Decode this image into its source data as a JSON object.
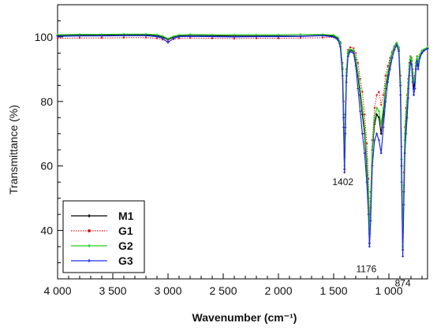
{
  "chart_data": {
    "type": "line",
    "xlabel": "Wavenumber (cm⁻¹)",
    "ylabel": "Transmittance (%)",
    "xlim": [
      4000,
      650
    ],
    "ylim": [
      25,
      110
    ],
    "x_reversed": true,
    "x_ticks": [
      4000,
      3500,
      3000,
      2500,
      2000,
      1500,
      1000
    ],
    "x_tick_labels": [
      "4 000",
      "3 500",
      "3 000",
      "2 500",
      "2 000",
      "1 500",
      "1 000"
    ],
    "y_ticks": [
      40,
      60,
      80,
      100
    ],
    "y_tick_labels": [
      "40",
      "60",
      "80",
      "100"
    ],
    "legend_position": "bottom-left",
    "annotations": [
      {
        "text": "1402",
        "x": 1402,
        "y": 56
      },
      {
        "text": "1176",
        "x": 1176,
        "y": 31
      },
      {
        "text": "874",
        "x": 874,
        "y": 28
      }
    ],
    "series": [
      {
        "name": "M1",
        "color": "#000000",
        "marker": "+",
        "x": [
          4000,
          3800,
          3600,
          3400,
          3200,
          3100,
          3050,
          3000,
          2950,
          2900,
          2800,
          2600,
          2400,
          2200,
          2000,
          1800,
          1600,
          1500,
          1460,
          1440,
          1420,
          1410,
          1402,
          1395,
          1385,
          1370,
          1350,
          1320,
          1300,
          1280,
          1260,
          1240,
          1220,
          1200,
          1185,
          1176,
          1165,
          1150,
          1130,
          1110,
          1090,
          1070,
          1050,
          1030,
          1010,
          990,
          970,
          950,
          930,
          910,
          895,
          885,
          874,
          865,
          855,
          845,
          835,
          825,
          815,
          805,
          795,
          785,
          775,
          765,
          755,
          745,
          735,
          720,
          700,
          680,
          650
        ],
        "y": [
          100.5,
          100.6,
          100.6,
          100.7,
          100.7,
          100.4,
          100.0,
          99.2,
          100.0,
          100.4,
          100.4,
          100.4,
          100.3,
          100.3,
          100.3,
          100.3,
          100.5,
          100.3,
          99.5,
          98.0,
          90.0,
          75.0,
          59.0,
          72.0,
          88.0,
          95.0,
          96.0,
          95.5,
          93.0,
          88.0,
          82.0,
          76.0,
          70.0,
          60.0,
          50.0,
          36.0,
          47.0,
          65.0,
          73.0,
          76.0,
          75.0,
          70.0,
          76.0,
          84.0,
          88.0,
          92.0,
          95.0,
          97.0,
          98.0,
          96.0,
          85.0,
          60.0,
          34.0,
          52.0,
          68.0,
          74.0,
          78.0,
          84.0,
          90.0,
          93.0,
          92.5,
          88.0,
          84.0,
          86.0,
          91.0,
          93.0,
          91.0,
          94.0,
          95.5,
          96.0,
          96.5
        ]
      },
      {
        "name": "G1",
        "color": "#e8171e",
        "marker": "dot",
        "x": [
          4000,
          3800,
          3600,
          3400,
          3200,
          3100,
          3050,
          3000,
          2950,
          2900,
          2800,
          2600,
          2400,
          2200,
          2000,
          1800,
          1600,
          1500,
          1460,
          1440,
          1420,
          1410,
          1402,
          1395,
          1385,
          1370,
          1350,
          1320,
          1300,
          1280,
          1260,
          1240,
          1220,
          1200,
          1185,
          1176,
          1165,
          1150,
          1130,
          1110,
          1090,
          1070,
          1050,
          1030,
          1010,
          990,
          970,
          950,
          930,
          910,
          895,
          885,
          874,
          865,
          855,
          845,
          835,
          825,
          815,
          805,
          795,
          785,
          775,
          765,
          755,
          745,
          735,
          720,
          700,
          680,
          650
        ],
        "y": [
          99.6,
          99.7,
          99.7,
          99.8,
          99.8,
          99.6,
          99.2,
          98.6,
          99.3,
          99.6,
          99.7,
          99.6,
          99.5,
          99.6,
          99.6,
          99.7,
          99.8,
          99.9,
          99.3,
          98.5,
          92.0,
          80.0,
          63.0,
          76.0,
          90.0,
          96.0,
          96.8,
          96.5,
          95.0,
          92.0,
          87.0,
          83.0,
          76.0,
          67.0,
          56.0,
          43.0,
          52.0,
          68.0,
          78.0,
          82.0,
          83.0,
          79.0,
          82.0,
          88.0,
          91.0,
          93.5,
          95.5,
          97.0,
          98.0,
          96.5,
          88.0,
          66.0,
          38.0,
          58.0,
          72.0,
          78.0,
          82.0,
          87.0,
          92.0,
          94.0,
          93.5,
          90.0,
          87.0,
          88.0,
          92.0,
          94.0,
          92.5,
          94.5,
          95.5,
          96.0,
          96.5
        ]
      },
      {
        "name": "G2",
        "color": "#22d11e",
        "marker": "+",
        "x": [
          4000,
          3800,
          3600,
          3400,
          3200,
          3100,
          3050,
          3000,
          2950,
          2900,
          2800,
          2600,
          2400,
          2200,
          2000,
          1800,
          1600,
          1500,
          1460,
          1440,
          1420,
          1410,
          1402,
          1395,
          1385,
          1370,
          1350,
          1320,
          1300,
          1280,
          1260,
          1240,
          1220,
          1200,
          1185,
          1176,
          1165,
          1150,
          1130,
          1110,
          1090,
          1070,
          1050,
          1030,
          1010,
          990,
          970,
          950,
          930,
          910,
          895,
          885,
          874,
          865,
          855,
          845,
          835,
          825,
          815,
          805,
          795,
          785,
          775,
          765,
          755,
          745,
          735,
          720,
          700,
          680,
          650
        ],
        "y": [
          100.7,
          100.8,
          100.8,
          100.9,
          100.9,
          100.7,
          100.3,
          99.5,
          100.2,
          100.6,
          100.8,
          100.7,
          100.7,
          100.7,
          100.7,
          100.8,
          100.8,
          100.6,
          99.8,
          98.2,
          90.5,
          76.0,
          60.0,
          73.0,
          89.0,
          95.5,
          96.2,
          95.8,
          93.5,
          89.0,
          84.0,
          78.0,
          72.0,
          62.0,
          52.0,
          39.0,
          49.0,
          66.0,
          75.0,
          78.0,
          77.0,
          73.0,
          78.0,
          85.0,
          89.0,
          92.5,
          95.2,
          97.2,
          98.2,
          96.8,
          86.0,
          62.0,
          35.0,
          54.0,
          70.0,
          76.0,
          80.0,
          86.0,
          91.0,
          94.0,
          93.0,
          89.0,
          86.0,
          87.0,
          92.0,
          94.0,
          92.0,
          94.5,
          95.8,
          96.2,
          96.8
        ]
      },
      {
        "name": "G3",
        "color": "#1f2ee6",
        "marker": "+",
        "x": [
          4000,
          3800,
          3600,
          3400,
          3200,
          3100,
          3050,
          3000,
          2950,
          2900,
          2800,
          2600,
          2400,
          2200,
          2000,
          1800,
          1600,
          1500,
          1460,
          1440,
          1420,
          1410,
          1402,
          1395,
          1385,
          1370,
          1350,
          1320,
          1300,
          1280,
          1260,
          1240,
          1220,
          1200,
          1185,
          1176,
          1165,
          1150,
          1130,
          1110,
          1090,
          1070,
          1050,
          1030,
          1010,
          990,
          970,
          950,
          930,
          910,
          895,
          885,
          874,
          865,
          855,
          845,
          835,
          825,
          815,
          805,
          795,
          785,
          775,
          765,
          755,
          745,
          735,
          720,
          700,
          680,
          650
        ],
        "y": [
          100.2,
          100.3,
          100.3,
          100.4,
          100.4,
          100.1,
          99.6,
          98.3,
          99.6,
          100.1,
          100.2,
          100.1,
          100.0,
          100.1,
          100.1,
          100.2,
          100.4,
          100.0,
          99.0,
          97.0,
          88.0,
          72.0,
          58.0,
          70.0,
          86.0,
          94.0,
          95.5,
          95.0,
          91.0,
          84.0,
          77.0,
          70.0,
          64.0,
          55.0,
          45.0,
          35.0,
          43.0,
          60.0,
          68.0,
          70.0,
          68.0,
          64.0,
          72.0,
          80.0,
          86.0,
          90.0,
          93.5,
          96.0,
          97.5,
          95.5,
          82.0,
          55.0,
          32.0,
          48.0,
          64.0,
          70.0,
          75.0,
          81.0,
          88.0,
          92.0,
          91.5,
          86.0,
          82.0,
          84.0,
          90.0,
          92.5,
          90.0,
          93.5,
          95.0,
          95.8,
          96.3
        ]
      }
    ]
  }
}
